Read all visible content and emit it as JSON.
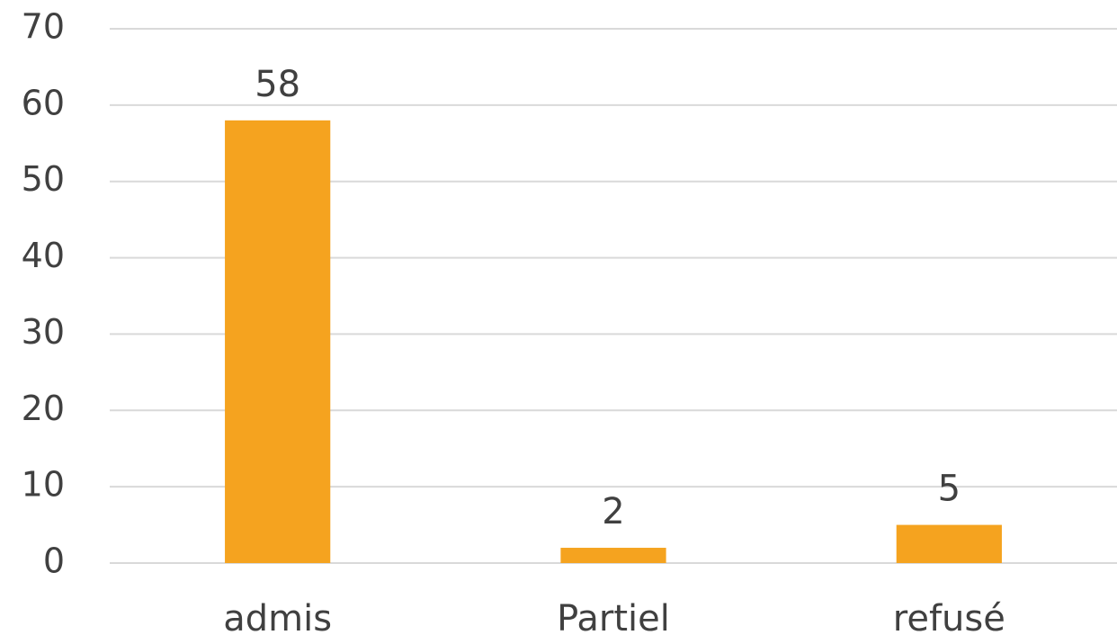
{
  "chart_data": {
    "type": "bar",
    "categories": [
      "admis",
      "Partiel",
      "refusé"
    ],
    "values": [
      58,
      2,
      5
    ],
    "color": "#f5a31f",
    "ylim": [
      0,
      70
    ],
    "yticks": [
      0,
      10,
      20,
      30,
      40,
      50,
      60,
      70
    ],
    "grid": true,
    "data_labels": true
  }
}
